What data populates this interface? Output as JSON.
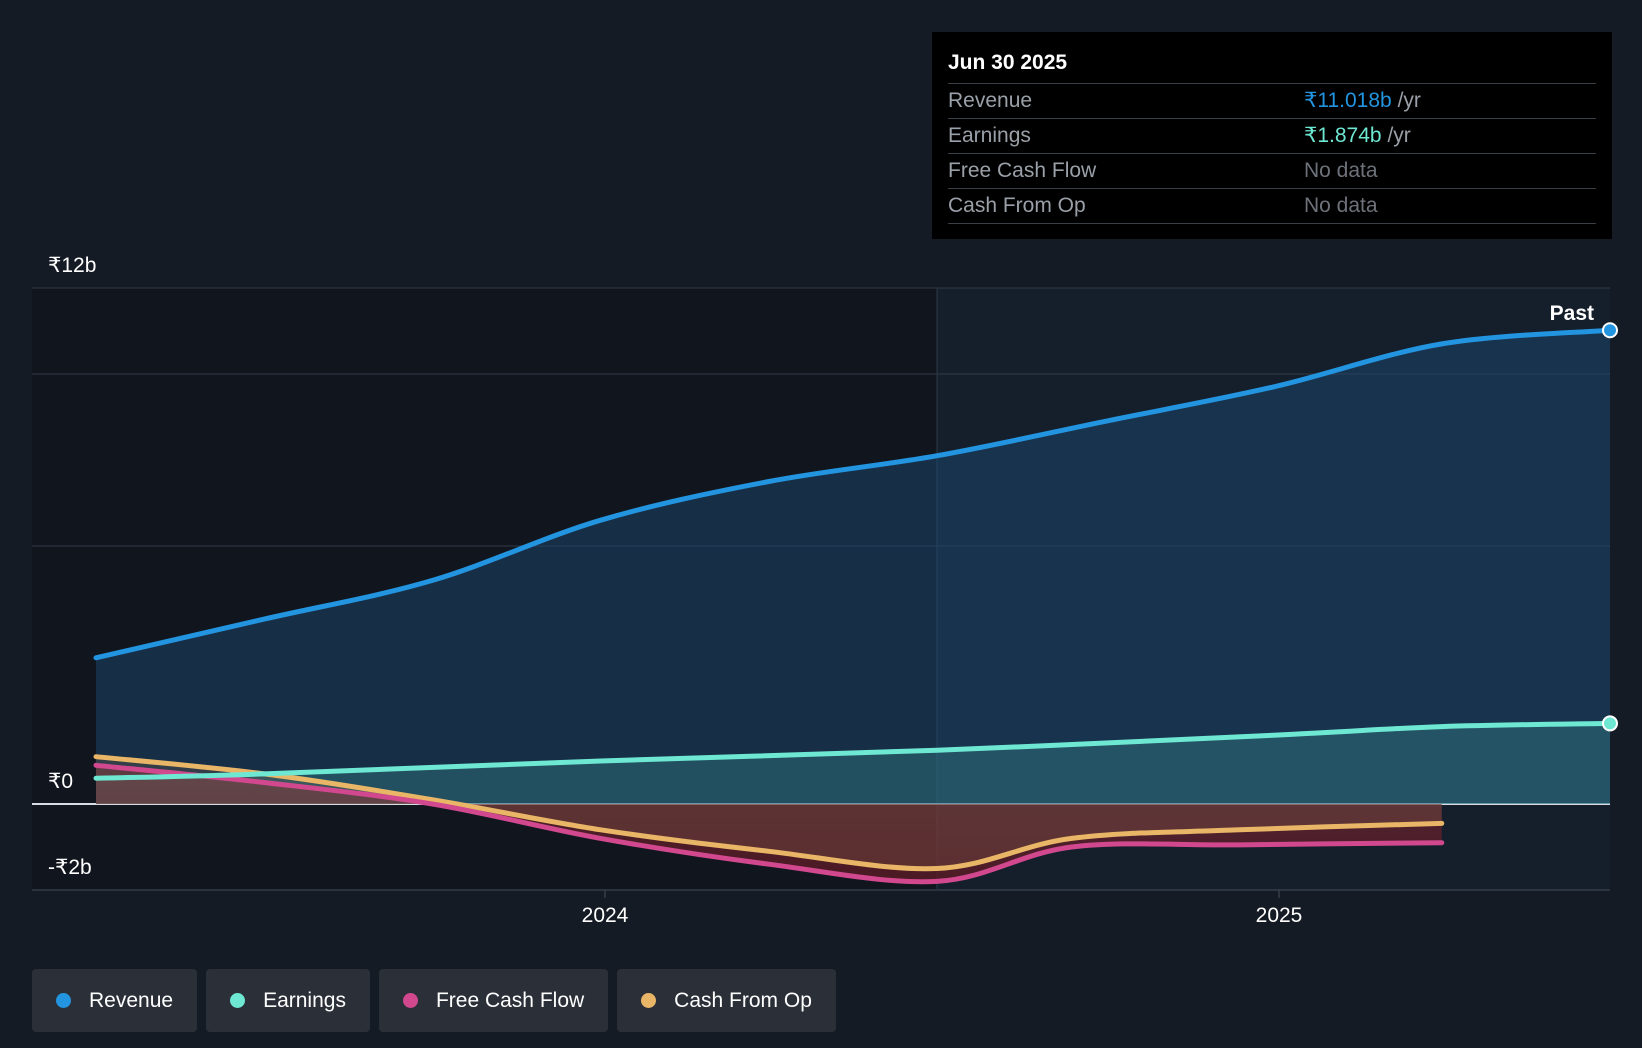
{
  "chart_data": {
    "type": "area",
    "y_tick_labels": [
      {
        "label": "₹12b",
        "value": 12
      },
      {
        "label": "₹0",
        "value": 0
      },
      {
        "label": "-₹2b",
        "value": -2
      }
    ],
    "ylim": [
      -2,
      12
    ],
    "x_tick_labels": [
      {
        "label": "2024",
        "value": 2024.0
      },
      {
        "label": "2025",
        "value": 2025.0
      }
    ],
    "xlim": [
      2023.15,
      2025.5
    ],
    "past_divider_x": 2024.5,
    "past_label": "Past",
    "series": [
      {
        "name": "Revenue",
        "color": "#2394df",
        "end_dot": true,
        "x": [
          2023.25,
          2023.5,
          2023.75,
          2024.0,
          2024.25,
          2024.5,
          2024.75,
          2025.0,
          2025.25,
          2025.5
        ],
        "values": [
          3.4,
          4.3,
          5.2,
          6.6,
          7.5,
          8.1,
          8.9,
          9.7,
          10.7,
          11.018
        ]
      },
      {
        "name": "Earnings",
        "color": "#6ee7d3",
        "end_dot": true,
        "x": [
          2023.25,
          2023.5,
          2024.0,
          2024.5,
          2025.0,
          2025.25,
          2025.5
        ],
        "values": [
          0.6,
          0.7,
          1.0,
          1.25,
          1.6,
          1.8,
          1.874
        ]
      },
      {
        "name": "Free Cash Flow",
        "color": "#d1488f",
        "end_dot": false,
        "x": [
          2023.25,
          2023.5,
          2023.75,
          2024.0,
          2024.25,
          2024.5,
          2024.7,
          2024.95,
          2025.25
        ],
        "values": [
          0.9,
          0.5,
          0.0,
          -0.8,
          -1.4,
          -1.8,
          -1.0,
          -0.95,
          -0.9
        ]
      },
      {
        "name": "Cash From Op",
        "color": "#e9b566",
        "end_dot": false,
        "x": [
          2023.25,
          2023.5,
          2023.75,
          2024.0,
          2024.25,
          2024.5,
          2024.7,
          2024.95,
          2025.25
        ],
        "values": [
          1.1,
          0.7,
          0.1,
          -0.6,
          -1.1,
          -1.5,
          -0.8,
          -0.6,
          -0.45
        ]
      }
    ]
  },
  "tooltip": {
    "date": "Jun 30 2025",
    "rows": [
      {
        "label": "Revenue",
        "value": "₹11.018b",
        "unit": "/yr"
      },
      {
        "label": "Earnings",
        "value": "₹1.874b",
        "unit": "/yr"
      },
      {
        "label": "Free Cash Flow",
        "value": "No data"
      },
      {
        "label": "Cash From Op",
        "value": "No data"
      }
    ]
  },
  "legend": [
    {
      "label": "Revenue",
      "color": "#2394df"
    },
    {
      "label": "Earnings",
      "color": "#6ee7d3"
    },
    {
      "label": "Free Cash Flow",
      "color": "#d1488f"
    },
    {
      "label": "Cash From Op",
      "color": "#e9b566"
    }
  ]
}
